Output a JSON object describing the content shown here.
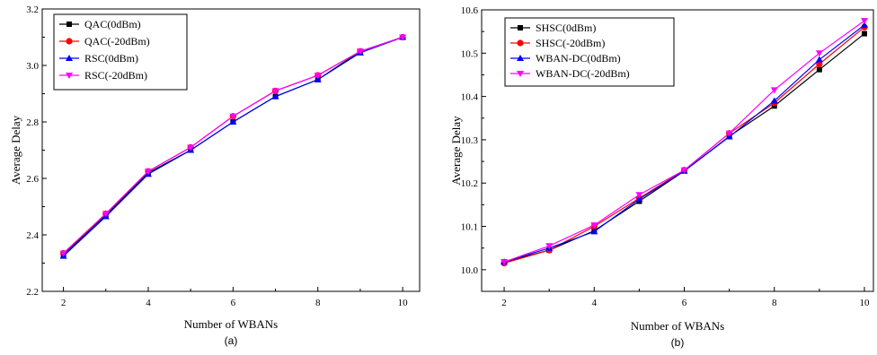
{
  "chart_data": [
    {
      "type": "line",
      "panel_label": "(a)",
      "xlabel": "Number of WBANs",
      "ylabel": "Average  Delay",
      "xlim": [
        1.5,
        10.4
      ],
      "ylim": [
        2.2,
        3.2
      ],
      "xticks": [
        "2",
        "4",
        "6",
        "8",
        "10"
      ],
      "yticks": [
        "2.2",
        "2.4",
        "2.6",
        "2.8",
        "3.0",
        "3.2"
      ],
      "legend_position": "top-left",
      "x": [
        2,
        3,
        4,
        5,
        6,
        7,
        8,
        9,
        10
      ],
      "series": [
        {
          "name": "QAC(0dBm)",
          "color": "#000000",
          "marker": "square",
          "values": [
            2.33,
            2.47,
            2.62,
            2.7,
            2.8,
            2.89,
            2.95,
            3.05,
            3.1
          ]
        },
        {
          "name": "QAC(-20dBm)",
          "color": "#ff0000",
          "marker": "circle",
          "values": [
            2.335,
            2.475,
            2.625,
            2.71,
            2.82,
            2.91,
            2.965,
            3.05,
            3.1
          ]
        },
        {
          "name": "RSC(0dBm)",
          "color": "#0000ff",
          "marker": "triangle-up",
          "values": [
            2.325,
            2.465,
            2.615,
            2.7,
            2.8,
            2.89,
            2.95,
            3.045,
            3.1
          ]
        },
        {
          "name": "RSC(-20dBm)",
          "color": "#ff00ff",
          "marker": "triangle-down",
          "values": [
            2.335,
            2.475,
            2.625,
            2.71,
            2.82,
            2.91,
            2.965,
            3.05,
            3.1
          ]
        }
      ]
    },
    {
      "type": "line",
      "panel_label": "(b)",
      "xlabel": "Number of WBANs",
      "ylabel": "Average  Delay",
      "xlim": [
        1.5,
        10.2
      ],
      "ylim": [
        9.95,
        10.6
      ],
      "xticks": [
        "2",
        "4",
        "6",
        "8",
        "10"
      ],
      "yticks": [
        "10.0",
        "10.1",
        "10.2",
        "10.3",
        "10.4",
        "10.5",
        "10.6"
      ],
      "legend_position": "top-left",
      "x": [
        2,
        3,
        4,
        5,
        6,
        7,
        8,
        9,
        10
      ],
      "series": [
        {
          "name": "SHSC(0dBm)",
          "color": "#000000",
          "marker": "square",
          "values": [
            10.018,
            10.045,
            10.09,
            10.158,
            10.228,
            10.308,
            10.378,
            10.462,
            10.545
          ]
        },
        {
          "name": "SHSC(-20dBm)",
          "color": "#ff0000",
          "marker": "circle",
          "values": [
            10.015,
            10.045,
            10.1,
            10.165,
            10.23,
            10.315,
            10.385,
            10.475,
            10.56
          ]
        },
        {
          "name": "WBAN-DC(0dBm)",
          "color": "#0000ff",
          "marker": "triangle-up",
          "values": [
            10.018,
            10.05,
            10.088,
            10.163,
            10.228,
            10.307,
            10.39,
            10.485,
            10.565
          ]
        },
        {
          "name": "WBAN-DC(-20dBm)",
          "color": "#ff00ff",
          "marker": "triangle-down",
          "values": [
            10.018,
            10.055,
            10.103,
            10.173,
            10.23,
            10.315,
            10.415,
            10.5,
            10.575
          ]
        }
      ]
    }
  ]
}
